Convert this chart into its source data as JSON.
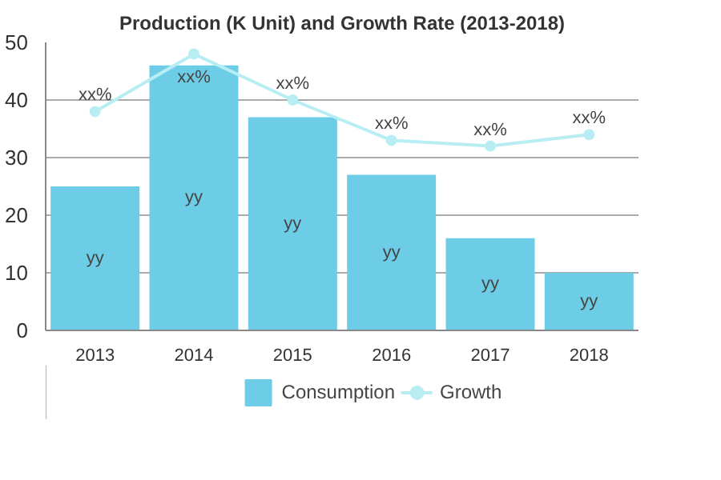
{
  "chart_data": {
    "type": "bar",
    "title": "Production (K Unit) and Growth Rate (2013-2018)",
    "categories": [
      "2013",
      "2014",
      "2015",
      "2016",
      "2017",
      "2018"
    ],
    "series": [
      {
        "name": "Consumption",
        "color": "#6ecde6",
        "values": [
          25,
          46,
          37,
          27,
          16,
          10
        ],
        "value_labels": [
          "yy",
          "yy",
          "yy",
          "yy",
          "yy",
          "yy"
        ]
      },
      {
        "name": "Growth",
        "type": "line",
        "color": "#b8eef3",
        "marker": "circle",
        "values": [
          38,
          48,
          40,
          33,
          32,
          34
        ],
        "value_labels": [
          "xx%",
          "xx%",
          "xx%",
          "xx%",
          "xx%",
          "xx%"
        ]
      }
    ],
    "ylim": [
      0,
      50
    ],
    "yticks": [
      0,
      10,
      20,
      30,
      40,
      50
    ],
    "grid": "y",
    "legend": "bottom"
  }
}
